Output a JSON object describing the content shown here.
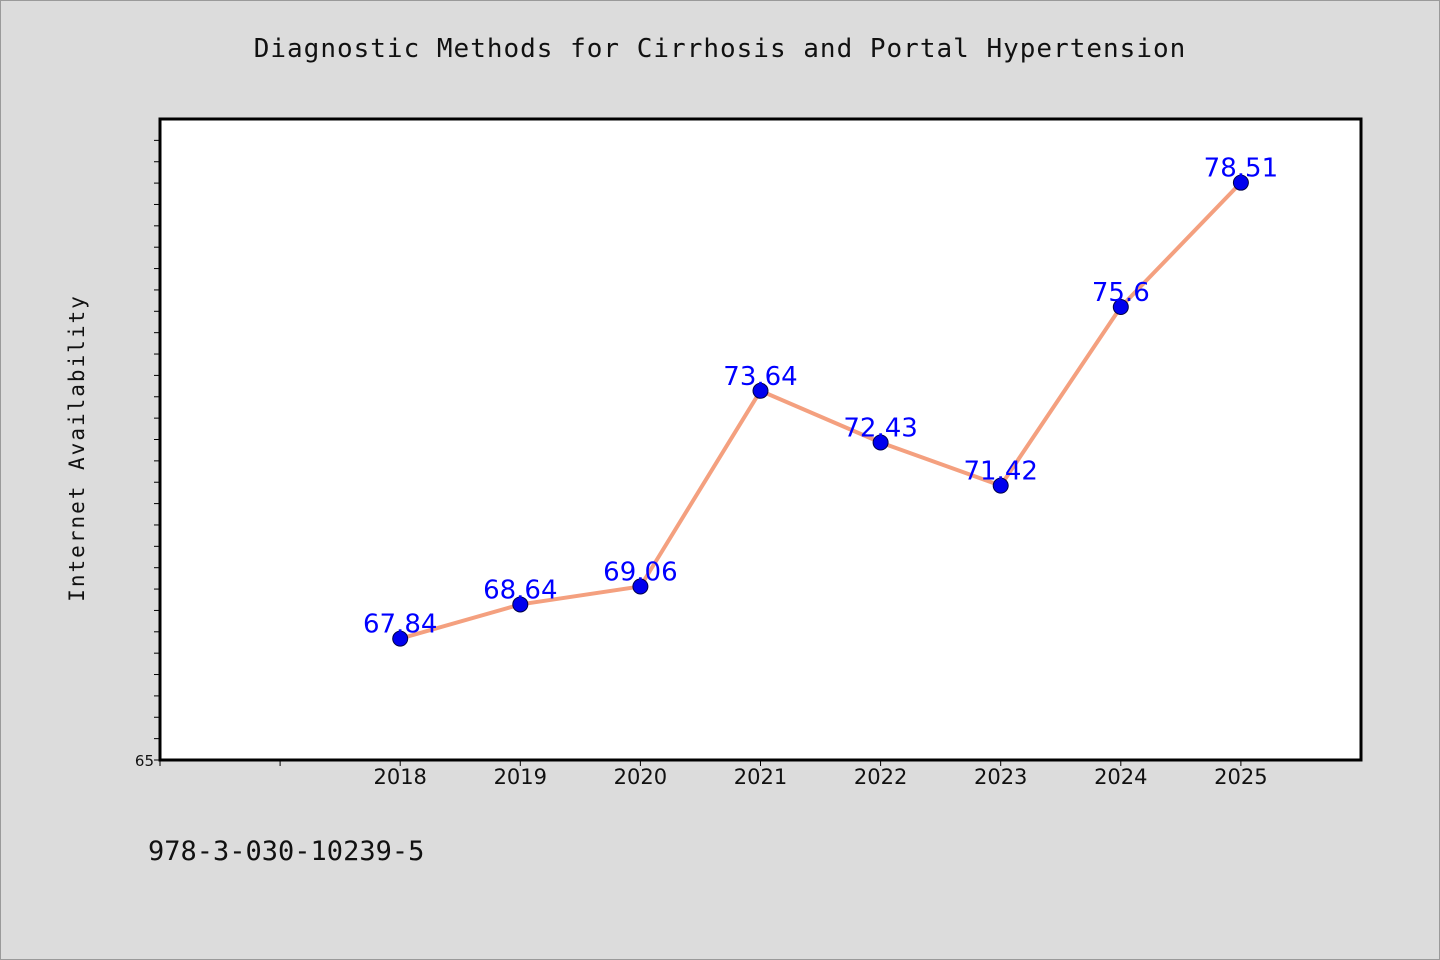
{
  "chart_data": {
    "type": "line",
    "title": "Diagnostic Methods for Cirrhosis and Portal Hypertension",
    "xlabel": "",
    "ylabel": "Internet Availability",
    "categories": [
      "2018",
      "2019",
      "2020",
      "2021",
      "2022",
      "2023",
      "2024",
      "2025"
    ],
    "series": [
      {
        "values": [
          67.84,
          68.64,
          69.06,
          73.64,
          72.43,
          71.42,
          75.6,
          78.51
        ],
        "data_labels": [
          "67.84",
          "68.64",
          "69.06",
          "73.64",
          "72.43",
          "71.42",
          "75.6",
          "78.51"
        ]
      }
    ],
    "ylim": [
      65,
      80
    ],
    "y_tick_labels": [
      "65"
    ],
    "x_axis_slots": 10,
    "grid": false,
    "legend": "none",
    "colors": {
      "line": "#f4a07f",
      "marker": "#0000ee",
      "data_label": "#0000ff",
      "plot_background": "#ffffff",
      "page_background": "#dcdcdc"
    }
  },
  "footer": {
    "code": "978-3-030-10239-5"
  }
}
